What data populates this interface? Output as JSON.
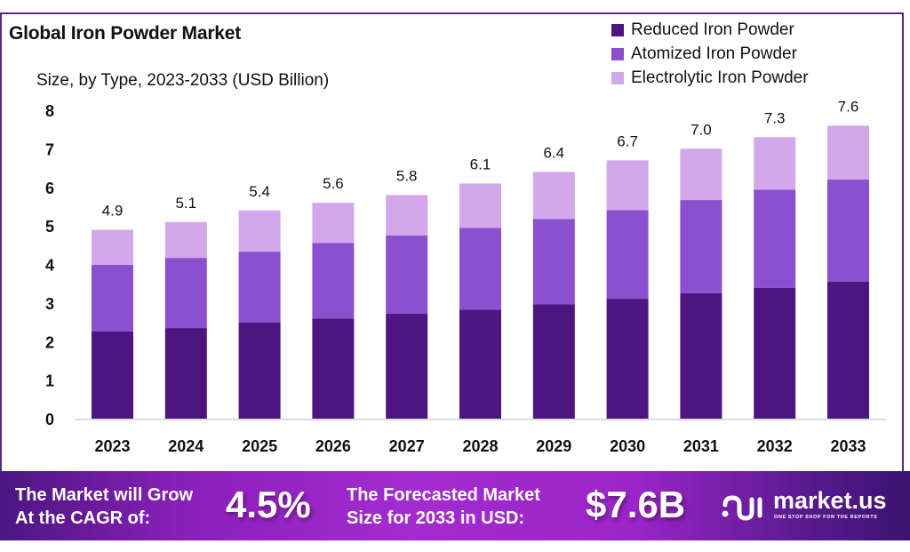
{
  "header": {
    "title": "Global Iron Powder Market",
    "subtitle": "Size, by Type, 2023-2033 (USD Billion)"
  },
  "colors": {
    "reduced": "#4e1581",
    "atomized": "#8b4fcf",
    "electrolytic": "#d2a7ec",
    "frame": "#5b2a86"
  },
  "chart_data": {
    "type": "bar",
    "stacked": true,
    "title": "Global Iron Powder Market",
    "subtitle": "Size, by Type, 2023-2033 (USD Billion)",
    "xlabel": "",
    "ylabel": "USD Billion",
    "ylim": [
      0,
      8
    ],
    "yticks": [
      "0",
      "1",
      "2",
      "3",
      "4",
      "5",
      "6",
      "7",
      "8"
    ],
    "grid": false,
    "legend_position": "top-right",
    "categories": [
      "2023",
      "2024",
      "2025",
      "2026",
      "2027",
      "2028",
      "2029",
      "2030",
      "2031",
      "2032",
      "2033"
    ],
    "series": [
      {
        "name": "Reduced Iron Powder",
        "values": [
          2.26,
          2.35,
          2.49,
          2.6,
          2.72,
          2.83,
          2.97,
          3.11,
          3.25,
          3.39,
          3.55
        ]
      },
      {
        "name": "Atomized Iron Powder",
        "values": [
          1.73,
          1.82,
          1.84,
          1.96,
          2.03,
          2.12,
          2.21,
          2.3,
          2.42,
          2.55,
          2.65
        ]
      },
      {
        "name": "Electrolytic Iron Powder",
        "values": [
          0.91,
          0.93,
          1.07,
          1.04,
          1.05,
          1.15,
          1.22,
          1.29,
          1.33,
          1.36,
          1.4
        ]
      }
    ],
    "totals": [
      "4.9",
      "5.1",
      "5.4",
      "5.6",
      "5.8",
      "6.1",
      "6.4",
      "6.7",
      "7.0",
      "7.3",
      "7.6"
    ]
  },
  "banner": {
    "cagr_label_line1": "The Market will Grow",
    "cagr_label_line2": "At the CAGR of:",
    "cagr_value": "4.5%",
    "forecast_label_line1": "The Forecasted Market",
    "forecast_label_line2": "Size for 2033 in USD:",
    "forecast_value": "$7.6B",
    "logo_name": "market.us",
    "logo_tagline": "ONE STOP SHOP FOR THE REPORTS",
    "logo_icon": "market-us-logo-icon"
  }
}
